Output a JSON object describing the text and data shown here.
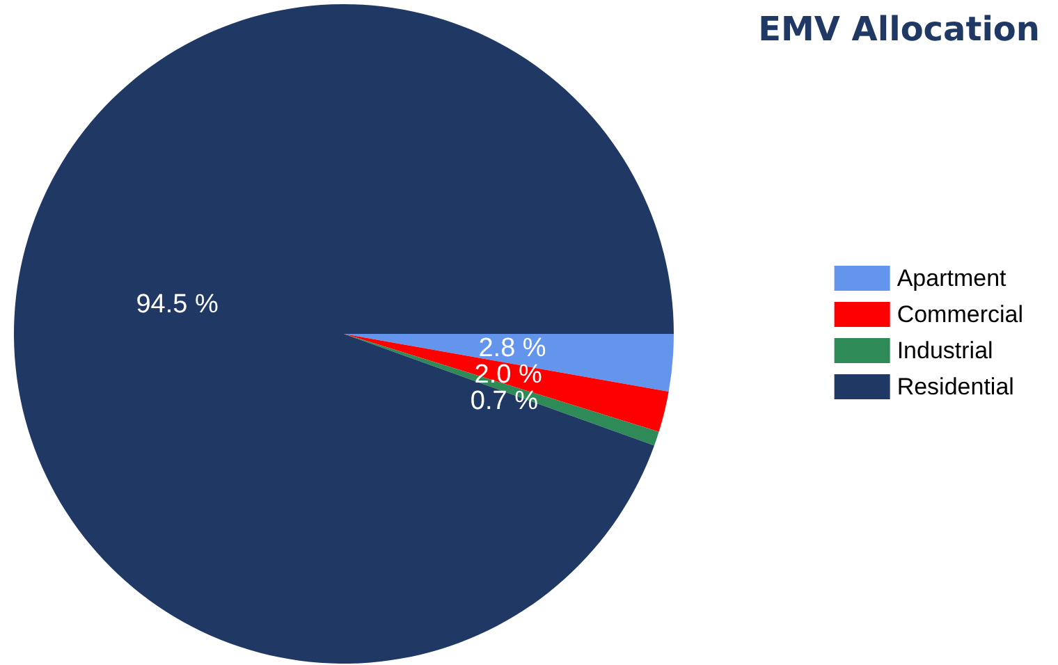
{
  "chart_data": {
    "type": "pie",
    "title": "EMV Allocation",
    "categories": [
      "Apartment",
      "Commercial",
      "Industrial",
      "Residential"
    ],
    "values": [
      2.8,
      2.0,
      0.7,
      94.5
    ],
    "colors": [
      "#6495ed",
      "#ff0000",
      "#2e8b57",
      "#203864"
    ],
    "value_labels": [
      "2.8 %",
      "2.0 %",
      "0.7 %",
      "94.5 %"
    ],
    "legend": "right"
  }
}
